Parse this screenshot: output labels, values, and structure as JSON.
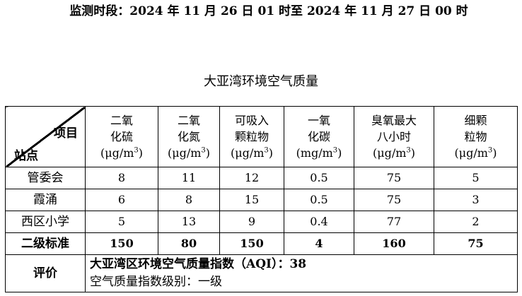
{
  "period": "监测时段：2024 年 11 月 26 日 01 时至 2024 年 11 月 27 日 00 时",
  "title": "大亚湾环境空气质量",
  "corner": {
    "item": "项目",
    "site": "站点"
  },
  "headers": [
    {
      "line1": "二氧",
      "line2": "化硫",
      "unit": "(μg/m",
      "sup": "3",
      "close": ")"
    },
    {
      "line1": "二氧",
      "line2": "化氮",
      "unit": "(μg/m",
      "sup": "3",
      "close": ")"
    },
    {
      "line1": "可吸入",
      "line2": "颗粒物",
      "unit": "(μg/m",
      "sup": "3",
      "close": ")"
    },
    {
      "line1": "一氧",
      "line2": "化碳",
      "unit": "(mg/m",
      "sup": "3",
      "close": ")"
    },
    {
      "line1": "臭氧最大",
      "line2": "八小时",
      "unit": "(μg/m",
      "sup": "3",
      "close": ")"
    },
    {
      "line1": "细颗",
      "line2": "粒物",
      "unit": "(μg/m",
      "sup": "3",
      "close": ")"
    }
  ],
  "rows": [
    {
      "site": "管委会",
      "values": [
        "8",
        "11",
        "12",
        "0.5",
        "75",
        "5"
      ]
    },
    {
      "site": "霞涌",
      "values": [
        "6",
        "8",
        "15",
        "0.5",
        "75",
        "3"
      ]
    },
    {
      "site": "西区小学",
      "values": [
        "5",
        "13",
        "9",
        "0.4",
        "77",
        "2"
      ]
    }
  ],
  "standard": {
    "label": "二级标准",
    "values": [
      "150",
      "80",
      "150",
      "4",
      "160",
      "75"
    ]
  },
  "evaluation": {
    "label": "评价",
    "aqi_line": "大亚湾区环境空气质量指数（AQI）：38",
    "level_line": "空气质量指数级别：一级"
  }
}
